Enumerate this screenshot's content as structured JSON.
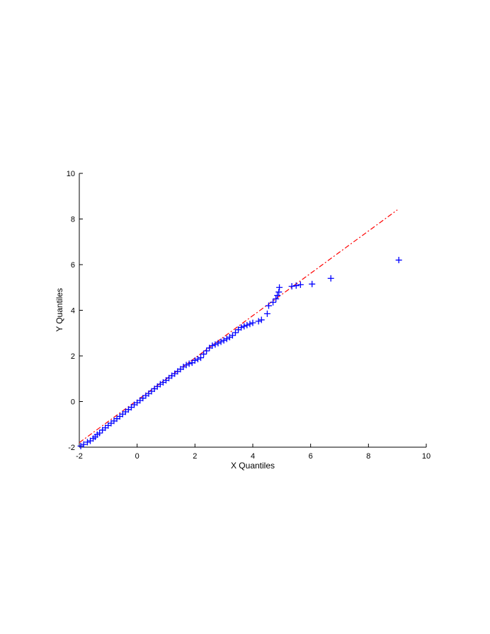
{
  "chart_data": {
    "type": "scatter",
    "title": "",
    "xlabel": "X Quantiles",
    "ylabel": "Y Quantiles",
    "xlim": [
      -2,
      10
    ],
    "ylim": [
      -2,
      10
    ],
    "xticks": [
      "-2",
      "0",
      "2",
      "4",
      "6",
      "8",
      "10"
    ],
    "yticks": [
      "-2",
      "0",
      "2",
      "4",
      "6",
      "8",
      "10"
    ],
    "grid": false,
    "colors": {
      "points": "#0000ff",
      "reference_line": "#ff0000",
      "axes": "#000000"
    },
    "reference_line": {
      "x": [
        -2.0,
        9.0
      ],
      "y": [
        -1.8,
        8.4
      ]
    },
    "series": [
      {
        "marker": "+",
        "points": [
          [
            -1.95,
            -1.95
          ],
          [
            -1.85,
            -1.88
          ],
          [
            -1.72,
            -1.78
          ],
          [
            -1.62,
            -1.72
          ],
          [
            -1.52,
            -1.62
          ],
          [
            -1.45,
            -1.55
          ],
          [
            -1.38,
            -1.45
          ],
          [
            -1.3,
            -1.38
          ],
          [
            -1.2,
            -1.25
          ],
          [
            -1.1,
            -1.15
          ],
          [
            -1.0,
            -1.05
          ],
          [
            -0.9,
            -0.95
          ],
          [
            -0.8,
            -0.85
          ],
          [
            -0.7,
            -0.75
          ],
          [
            -0.6,
            -0.65
          ],
          [
            -0.5,
            -0.55
          ],
          [
            -0.4,
            -0.45
          ],
          [
            -0.3,
            -0.35
          ],
          [
            -0.2,
            -0.25
          ],
          [
            -0.1,
            -0.14
          ],
          [
            0.0,
            -0.05
          ],
          [
            0.1,
            0.05
          ],
          [
            0.2,
            0.15
          ],
          [
            0.3,
            0.26
          ],
          [
            0.4,
            0.35
          ],
          [
            0.5,
            0.45
          ],
          [
            0.6,
            0.56
          ],
          [
            0.7,
            0.66
          ],
          [
            0.8,
            0.76
          ],
          [
            0.9,
            0.84
          ],
          [
            1.0,
            0.93
          ],
          [
            1.1,
            1.03
          ],
          [
            1.2,
            1.13
          ],
          [
            1.3,
            1.22
          ],
          [
            1.4,
            1.32
          ],
          [
            1.5,
            1.42
          ],
          [
            1.6,
            1.52
          ],
          [
            1.7,
            1.6
          ],
          [
            1.8,
            1.66
          ],
          [
            1.9,
            1.7
          ],
          [
            2.0,
            1.8
          ],
          [
            2.1,
            1.86
          ],
          [
            2.2,
            1.92
          ],
          [
            2.3,
            2.08
          ],
          [
            2.4,
            2.22
          ],
          [
            2.5,
            2.35
          ],
          [
            2.6,
            2.45
          ],
          [
            2.7,
            2.5
          ],
          [
            2.8,
            2.56
          ],
          [
            2.9,
            2.62
          ],
          [
            3.0,
            2.68
          ],
          [
            3.1,
            2.75
          ],
          [
            3.2,
            2.82
          ],
          [
            3.3,
            2.9
          ],
          [
            3.4,
            3.02
          ],
          [
            3.5,
            3.15
          ],
          [
            3.6,
            3.25
          ],
          [
            3.7,
            3.3
          ],
          [
            3.8,
            3.35
          ],
          [
            3.9,
            3.4
          ],
          [
            4.0,
            3.45
          ],
          [
            4.2,
            3.52
          ],
          [
            4.3,
            3.58
          ],
          [
            4.5,
            3.85
          ],
          [
            4.55,
            4.2
          ],
          [
            4.7,
            4.35
          ],
          [
            4.8,
            4.5
          ],
          [
            4.85,
            4.65
          ],
          [
            4.9,
            4.8
          ],
          [
            4.92,
            5.0
          ],
          [
            5.35,
            5.05
          ],
          [
            5.5,
            5.08
          ],
          [
            5.65,
            5.12
          ],
          [
            6.05,
            5.15
          ],
          [
            6.7,
            5.4
          ],
          [
            9.05,
            6.2
          ]
        ]
      }
    ]
  }
}
